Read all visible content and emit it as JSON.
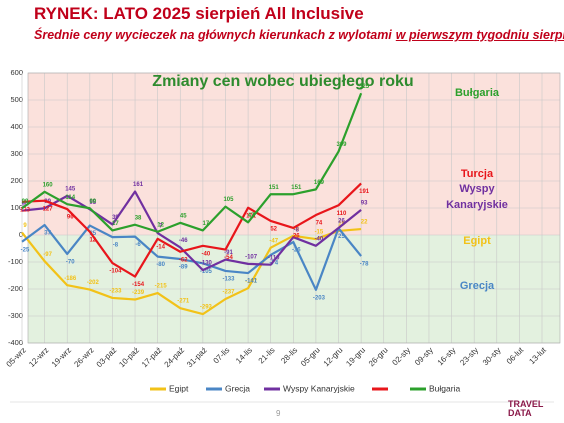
{
  "header": {
    "title": "RYNEK: LATO 2025 sierpień All Inclusive",
    "subtitle_start": "Średnie ceny wycieczek na głównych kierunkach z wylotami",
    "subtitle_underlined": "w pierwszym tygodniu sierpnia"
  },
  "chart_data": {
    "type": "line",
    "title": "Zmiany cen wobec ubiegłego roku",
    "categories": [
      "05-wrz",
      "12-wrz",
      "19-wrz",
      "26-wrz",
      "03-paź",
      "10-paź",
      "17-paź",
      "24-paź",
      "31-paź",
      "07-lis",
      "14-lis",
      "21-lis",
      "28-lis",
      "05-gru",
      "12-gru",
      "19-gru",
      "26-gru",
      "02-sty",
      "09-sty",
      "16-sty",
      "23-sty",
      "30-sty",
      "06-lut",
      "13-lut"
    ],
    "series": [
      {
        "name": "Egipt",
        "color": "#f2c218",
        "values": [
          9,
          -97,
          -186,
          -202,
          -233,
          -239,
          -215,
          -271,
          -293,
          -237,
          -197,
          -47,
          -3,
          -15,
          15,
          22,
          null,
          null,
          null,
          null,
          null,
          null,
          null,
          null
        ]
      },
      {
        "name": "Grecja",
        "color": "#4a86c5",
        "values": [
          -25,
          37,
          -70,
          35,
          -8,
          -6,
          -80,
          -89,
          -105,
          -133,
          -141,
          -74,
          -26,
          -203,
          25,
          -78,
          null,
          null,
          null,
          null,
          null,
          null,
          null,
          null
        ]
      },
      {
        "name": "Wyspy Kanaryjskie",
        "color": "#7030a0",
        "values": [
          90,
          99,
          145,
          95,
          39,
          161,
          7,
          -46,
          -130,
          -91,
          -107,
          -110,
          -8,
          -40,
          26,
          93,
          null,
          null,
          null,
          null,
          null,
          null,
          null,
          null
        ]
      },
      {
        "name": "Turcja",
        "color": "#e8161b",
        "values": [
          123,
          127,
          96,
          12,
          -104,
          -154,
          -14,
          -62,
          -40,
          -54,
          101,
          52,
          26,
          74,
          110,
          191,
          null,
          null,
          null,
          null,
          null,
          null,
          null,
          null
        ]
      },
      {
        "name": "Bułgaria",
        "color": "#2ca02c",
        "values": [
          99,
          160,
          114,
          99,
          17,
          38,
          12,
          45,
          17,
          105,
          47,
          151,
          151,
          169,
          309,
          525,
          null,
          null,
          null,
          null,
          null,
          null,
          null,
          null
        ]
      }
    ],
    "ylim": [
      -400,
      600
    ],
    "yticks": [
      -400,
      -300,
      -200,
      -100,
      0,
      100,
      200,
      300,
      400,
      500,
      600
    ],
    "grid": true,
    "legend": "bottom"
  },
  "footer": {
    "page": "9",
    "logo_top": "TRAVEL",
    "logo_bottom": "DATA"
  }
}
